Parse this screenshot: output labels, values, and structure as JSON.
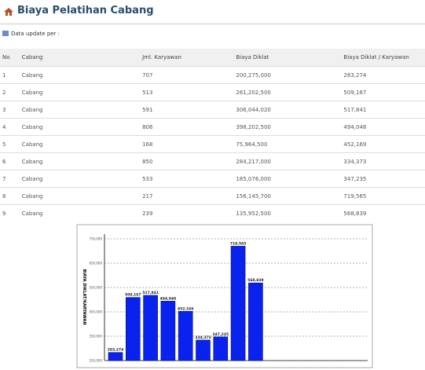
{
  "header": {
    "title": "Biaya Pelatihan Cabang",
    "update": "Data update per :"
  },
  "table": {
    "columns": [
      "No",
      "Cabang",
      "Jml. Karyawan",
      "Biaya Diklat",
      "Biaya Diklat / Karyawan"
    ],
    "rows": [
      [
        "1",
        "Cabang",
        "707",
        "200,275,000",
        "283,274"
      ],
      [
        "2",
        "Cabang",
        "513",
        "261,202,500",
        "509,167"
      ],
      [
        "3",
        "Cabang",
        "591",
        "306,044,020",
        "517,841"
      ],
      [
        "4",
        "Cabang",
        "806",
        "398,202,500",
        "494,048"
      ],
      [
        "5",
        "Cabang",
        "168",
        "75,964,500",
        "452,169"
      ],
      [
        "6",
        "Cabang",
        "850",
        "284,217,000",
        "334,373"
      ],
      [
        "7",
        "Cabang",
        "533",
        "185,076,000",
        "347,235"
      ],
      [
        "8",
        "Cabang",
        "217",
        "156,145,700",
        "719,565"
      ],
      [
        "9",
        "Cabang",
        "239",
        "135,952,500",
        "568,839"
      ]
    ]
  },
  "chart_data": {
    "type": "bar",
    "y_label": "BIAYA DIKLAT/KARYAWAN",
    "color": "#0a22ee",
    "values": [
      283274,
      509167,
      517841,
      494048,
      452169,
      334373,
      347235,
      719565,
      568839
    ],
    "value_labels": [
      "283,274",
      "509,167",
      "517,841",
      "494,048",
      "452,169",
      "334,373",
      "347,235",
      "719,565",
      "568,839"
    ],
    "ylim": [
      250000,
      750000
    ],
    "yticks": [
      {
        "value": 250000,
        "label": "250,000"
      },
      {
        "value": 350000,
        "label": "350,000"
      },
      {
        "value": 450000,
        "label": "450,000"
      },
      {
        "value": 550000,
        "label": "550,000"
      },
      {
        "value": 650000,
        "label": "650,000"
      },
      {
        "value": 750000,
        "label": "750,000"
      }
    ],
    "grid": true
  }
}
